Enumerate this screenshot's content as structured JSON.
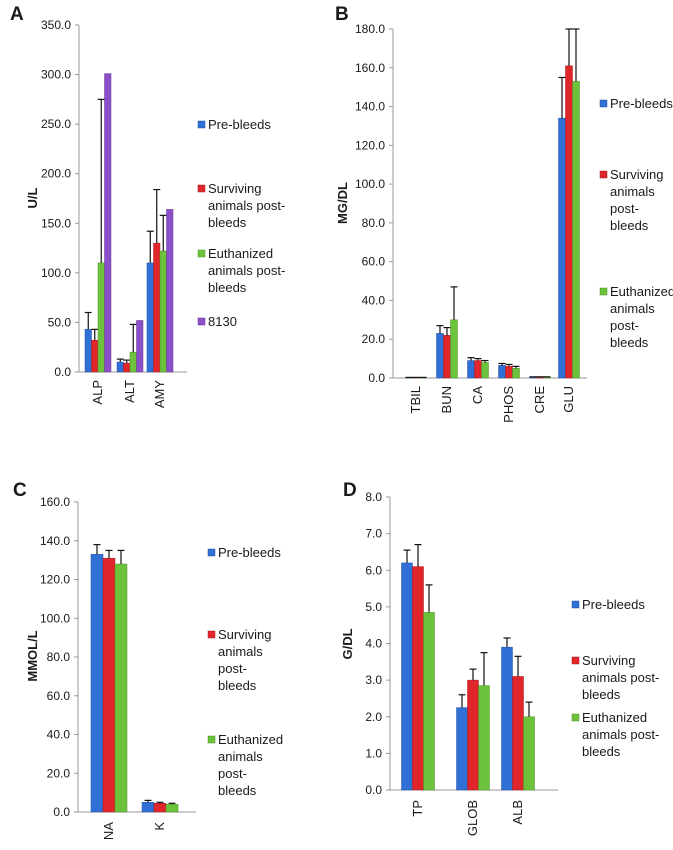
{
  "chart_data": [
    {
      "panel": "A",
      "type": "bar",
      "ylabel": "U/L",
      "ylim": [
        0,
        350
      ],
      "yticks": [
        "0.0",
        "50.0",
        "100.0",
        "150.0",
        "200.0",
        "250.0",
        "300.0",
        "350.0"
      ],
      "categories": [
        "ALP",
        "ALT",
        "AMY"
      ],
      "error_bars": "upper",
      "series": [
        {
          "name": "Pre-bleeds",
          "color": "#2f6fd6",
          "values": [
            43,
            10,
            110
          ],
          "errors": [
            17,
            3,
            32
          ]
        },
        {
          "name": "Surviving animals post-bleeds",
          "color": "#e0262a",
          "values": [
            32,
            9,
            130
          ],
          "errors": [
            11,
            3,
            54
          ]
        },
        {
          "name": "Euthanized animals post-bleeds",
          "color": "#6cc23a",
          "values": [
            110,
            20,
            122
          ],
          "errors": [
            165,
            28,
            36
          ]
        },
        {
          "name": "8130",
          "color": "#8b4fc7",
          "values": [
            301,
            52,
            164
          ],
          "errors": [
            0,
            0,
            0
          ]
        }
      ]
    },
    {
      "panel": "B",
      "type": "bar",
      "ylabel": "MG/DL",
      "ylim": [
        0,
        180
      ],
      "yticks": [
        "0.0",
        "20.0",
        "40.0",
        "60.0",
        "80.0",
        "100.0",
        "120.0",
        "140.0",
        "160.0",
        "180.0"
      ],
      "categories": [
        "TBIL",
        "BUN",
        "CA",
        "PHOS",
        "CRE",
        "GLU"
      ],
      "error_bars": "upper",
      "series": [
        {
          "name": "Pre-bleeds",
          "color": "#2f6fd6",
          "values": [
            0.2,
            23,
            9,
            6.5,
            0.5,
            134
          ],
          "errors": [
            0.1,
            4,
            1.5,
            1,
            0.1,
            21
          ]
        },
        {
          "name": "Surviving animals post-bleeds",
          "color": "#e0262a",
          "values": [
            0.2,
            22,
            9,
            6,
            0.5,
            161
          ],
          "errors": [
            0.1,
            4,
            1,
            1,
            0.1,
            25
          ]
        },
        {
          "name": "Euthanized animals post-bleeds",
          "color": "#6cc23a",
          "values": [
            0.2,
            30,
            8,
            5,
            0.5,
            153
          ],
          "errors": [
            0.1,
            17,
            1,
            1,
            0.1,
            27
          ]
        }
      ]
    },
    {
      "panel": "C",
      "type": "bar",
      "ylabel": "MMOL/L",
      "ylim": [
        0,
        160
      ],
      "yticks": [
        "0.0",
        "20.0",
        "40.0",
        "60.0",
        "80.0",
        "100.0",
        "120.0",
        "140.0",
        "160.0"
      ],
      "categories": [
        "NA",
        "K"
      ],
      "error_bars": "upper",
      "series": [
        {
          "name": "Pre-bleeds",
          "color": "#2f6fd6",
          "values": [
            133,
            5
          ],
          "errors": [
            5,
            1
          ]
        },
        {
          "name": "Surviving animals post-bleeds",
          "color": "#e0262a",
          "values": [
            131,
            4.5
          ],
          "errors": [
            4,
            0.5
          ]
        },
        {
          "name": "Euthanized animals post-bleeds",
          "color": "#6cc23a",
          "values": [
            128,
            4
          ],
          "errors": [
            7,
            0.5
          ]
        }
      ]
    },
    {
      "panel": "D",
      "type": "bar",
      "ylabel": "G/DL",
      "ylim": [
        0,
        8
      ],
      "yticks": [
        "0.0",
        "1.0",
        "2.0",
        "3.0",
        "4.0",
        "5.0",
        "6.0",
        "7.0",
        "8.0"
      ],
      "categories": [
        "TP",
        "GLOB",
        "ALB"
      ],
      "error_bars": "upper",
      "series": [
        {
          "name": "Pre-bleeds",
          "color": "#2f6fd6",
          "values": [
            6.2,
            2.25,
            3.9
          ],
          "errors": [
            0.35,
            0.35,
            0.25
          ]
        },
        {
          "name": "Surviving animals post-bleeds",
          "color": "#e0262a",
          "values": [
            6.1,
            3.0,
            3.1
          ],
          "errors": [
            0.6,
            0.3,
            0.55
          ]
        },
        {
          "name": "Euthanized animals post-bleeds",
          "color": "#6cc23a",
          "values": [
            4.85,
            2.85,
            2.0
          ],
          "errors": [
            0.75,
            0.9,
            0.4
          ]
        }
      ]
    }
  ]
}
